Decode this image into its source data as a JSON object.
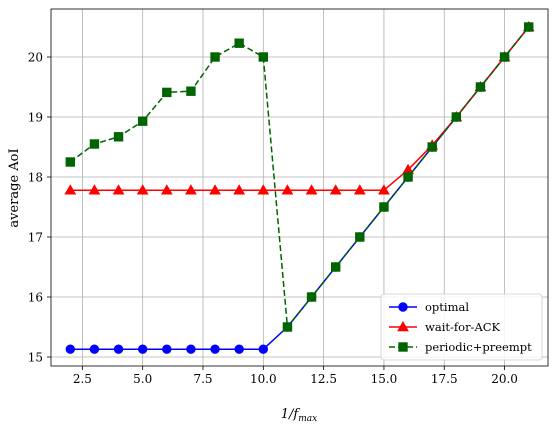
{
  "chart_data": {
    "type": "line",
    "title": "",
    "xlabel": "1/f",
    "xlabel_sub": "max",
    "ylabel": "average AoI",
    "xlim": [
      1.2,
      21.8
    ],
    "ylim": [
      14.85,
      20.8
    ],
    "xticks": [
      2.5,
      5.0,
      7.5,
      10.0,
      12.5,
      15.0,
      17.5,
      20.0
    ],
    "xtick_labels": [
      "2.5",
      "5.0",
      "7.5",
      "10.0",
      "12.5",
      "15.0",
      "17.5",
      "20.0"
    ],
    "yticks": [
      15,
      16,
      17,
      18,
      19,
      20
    ],
    "ytick_labels": [
      "15",
      "16",
      "17",
      "18",
      "19",
      "20"
    ],
    "grid": true,
    "legend_position": "lower-right",
    "x": [
      2,
      3,
      4,
      5,
      6,
      7,
      8,
      9,
      10,
      11,
      12,
      13,
      14,
      15,
      16,
      17,
      18,
      19,
      20,
      21
    ],
    "series": [
      {
        "name": "optimal",
        "color": "#0000ff",
        "marker": "circle",
        "linestyle": "solid",
        "values": [
          15.13,
          15.13,
          15.13,
          15.13,
          15.13,
          15.13,
          15.13,
          15.13,
          15.13,
          15.5,
          16.0,
          16.5,
          17.0,
          17.5,
          18.0,
          18.5,
          19.0,
          19.5,
          20.0,
          20.5
        ]
      },
      {
        "name": "wait-for-ACK",
        "color": "#ff0000",
        "marker": "triangle",
        "linestyle": "solid",
        "values": [
          17.78,
          17.78,
          17.78,
          17.78,
          17.78,
          17.78,
          17.78,
          17.78,
          17.78,
          17.78,
          17.78,
          17.78,
          17.78,
          17.78,
          18.12,
          18.53,
          19.0,
          19.5,
          20.0,
          20.5
        ]
      },
      {
        "name": "periodic+preempt",
        "color": "#006400",
        "marker": "square",
        "linestyle": "dashed",
        "values": [
          18.25,
          18.55,
          18.67,
          18.93,
          19.41,
          19.43,
          20.0,
          20.23,
          20.0,
          15.5,
          16.0,
          16.5,
          17.0,
          17.5,
          18.0,
          18.5,
          19.0,
          19.5,
          20.0,
          20.5
        ]
      }
    ]
  }
}
